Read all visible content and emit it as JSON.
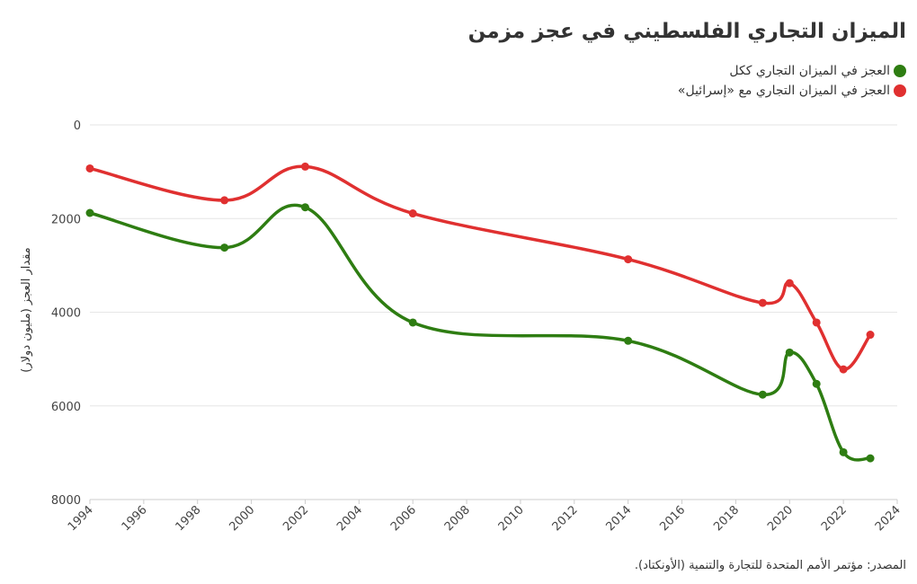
{
  "title": "الميزان التجاري الفلسطيني في عجز مزمن",
  "source": "المصدر: مؤتمر الأمم المتحدة للتجارة والتنمية (الأونكتاد).",
  "chart_data": {
    "type": "line",
    "title": "الميزان التجاري الفلسطيني في عجز مزمن",
    "xlabel": "",
    "ylabel": "مقدار العجز (مليون دولار)",
    "xlim": [
      1994,
      2024
    ],
    "ylim": [
      0,
      8000
    ],
    "y_inverted": true,
    "x_ticks": [
      1994,
      1996,
      1998,
      2000,
      2002,
      2004,
      2006,
      2008,
      2010,
      2012,
      2014,
      2016,
      2018,
      2020,
      2022,
      2024
    ],
    "y_ticks": [
      0,
      2000,
      4000,
      6000,
      8000
    ],
    "grid": "horizontal",
    "legend_position": "top-right",
    "series": [
      {
        "name": "العجز في الميزان التجاري ككل",
        "color": "#2e7d12",
        "x": [
          1994,
          1999,
          2002,
          2006,
          2014,
          2019,
          2020,
          2021,
          2022,
          2023
        ],
        "values": [
          1880,
          2620,
          1760,
          4220,
          4610,
          5760,
          4860,
          5530,
          6990,
          7120
        ]
      },
      {
        "name": "العجز في الميزان التجاري مع «إسرائيل»",
        "color": "#e03030",
        "x": [
          1994,
          1999,
          2002,
          2006,
          2014,
          2019,
          2020,
          2021,
          2022,
          2023
        ],
        "values": [
          930,
          1610,
          890,
          1890,
          2870,
          3800,
          3380,
          4220,
          5220,
          4480
        ]
      }
    ]
  }
}
